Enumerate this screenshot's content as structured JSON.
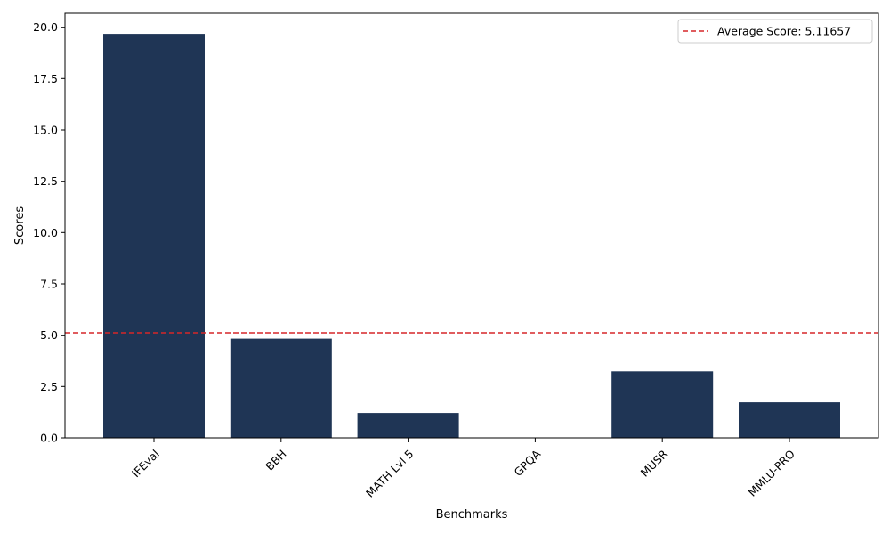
{
  "chart_data": {
    "type": "bar",
    "categories": [
      "IFEval",
      "BBH",
      "MATH Lvl 5",
      "GPQA",
      "MUSR",
      "MMLU-PRO"
    ],
    "values": [
      19.68,
      4.83,
      1.21,
      0.0,
      3.24,
      1.73
    ],
    "xlabel": "Benchmarks",
    "ylabel": "Scores",
    "ylim": [
      0,
      20.68
    ],
    "yticks": [
      "0.0",
      "2.5",
      "5.0",
      "7.5",
      "10.0",
      "12.5",
      "15.0",
      "17.5",
      "20.0"
    ],
    "bar_color": "#1f3555",
    "average_line": {
      "value": 5.11657,
      "label": "Average Score: 5.11657",
      "color": "#d62728",
      "style": "dashed"
    },
    "legend_position": "top-right",
    "grid": false
  }
}
